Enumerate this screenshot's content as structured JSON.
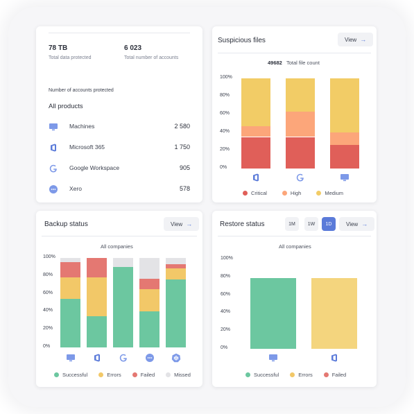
{
  "accounts_card": {
    "data_protected_value": "78 TB",
    "data_protected_label": "Total data protected",
    "accounts_value": "6 023",
    "accounts_label": "Total number of accounts",
    "section_title": "Number of accounts protected",
    "group_title": "All products",
    "products": [
      {
        "name": "Machines",
        "value": "2 580",
        "icon": "monitor-icon"
      },
      {
        "name": "Microsoft 365",
        "value": "1 750",
        "icon": "microsoft-365-icon"
      },
      {
        "name": "Google Workspace",
        "value": "905",
        "icon": "google-icon"
      },
      {
        "name": "Xero",
        "value": "578",
        "icon": "xero-icon"
      }
    ]
  },
  "suspicious_card": {
    "title": "Suspicious files",
    "view_label": "View",
    "file_count_value": "49682",
    "file_count_label": "Total file count"
  },
  "backup_card": {
    "title": "Backup status",
    "view_label": "View",
    "subtitle": "All companies"
  },
  "restore_card": {
    "title": "Restore status",
    "view_label": "View",
    "subtitle": "All companies",
    "ranges": [
      "1M",
      "1W",
      "1D"
    ],
    "selected_range": "1D"
  },
  "colors": {
    "successful": "#6cc7a0",
    "errors": "#f2c868",
    "failed": "#e47872",
    "missed": "#e3e3e6",
    "critical": "#e05f59",
    "high": "#fca67a",
    "medium": "#f2cc66",
    "restore_errors": "#f4d57e",
    "accent": "#5b7bd9"
  },
  "chart_data": [
    {
      "type": "bar",
      "stacked": true,
      "categories": [
        "microsoft-365-icon",
        "google-icon",
        "monitor-icon"
      ],
      "y_ticks": [
        "100%",
        "80%",
        "60%",
        "40%",
        "20%",
        "0%"
      ],
      "ylim": [
        0,
        100
      ],
      "series": [
        {
          "name": "Critical",
          "values": [
            35,
            35,
            26
          ]
        },
        {
          "name": "High",
          "values": [
            12,
            28,
            14
          ]
        },
        {
          "name": "Medium",
          "values": [
            53,
            37,
            60
          ]
        }
      ],
      "legend": [
        "Critical",
        "High",
        "Medium"
      ]
    },
    {
      "type": "bar",
      "stacked": true,
      "categories": [
        "monitor-icon",
        "microsoft-365-icon",
        "google-icon",
        "xero-icon",
        "kubernetes-icon"
      ],
      "y_ticks": [
        "100%",
        "80%",
        "60%",
        "40%",
        "20%",
        "0%"
      ],
      "ylim": [
        0,
        100
      ],
      "series": [
        {
          "name": "Successful",
          "values": [
            54,
            35,
            90,
            40,
            76
          ]
        },
        {
          "name": "Errors",
          "values": [
            24,
            43,
            0,
            25,
            12
          ]
        },
        {
          "name": "Failed",
          "values": [
            17,
            22,
            0,
            12,
            5
          ]
        },
        {
          "name": "Missed",
          "values": [
            5,
            0,
            10,
            23,
            7
          ]
        }
      ],
      "legend": [
        "Successful",
        "Errors",
        "Failed",
        "Missed"
      ]
    },
    {
      "type": "bar",
      "stacked": true,
      "categories": [
        "monitor-icon",
        "microsoft-365-icon"
      ],
      "y_ticks": [
        "100%",
        "80%",
        "60%",
        "40%",
        "20%",
        "0%"
      ],
      "ylim": [
        0,
        100
      ],
      "series": [
        {
          "name": "Successful",
          "values": [
            79,
            0
          ]
        },
        {
          "name": "Errors",
          "values": [
            0,
            79
          ]
        },
        {
          "name": "Failed",
          "values": [
            0,
            0
          ]
        }
      ],
      "legend": [
        "Successful",
        "Errors",
        "Failed"
      ]
    }
  ]
}
